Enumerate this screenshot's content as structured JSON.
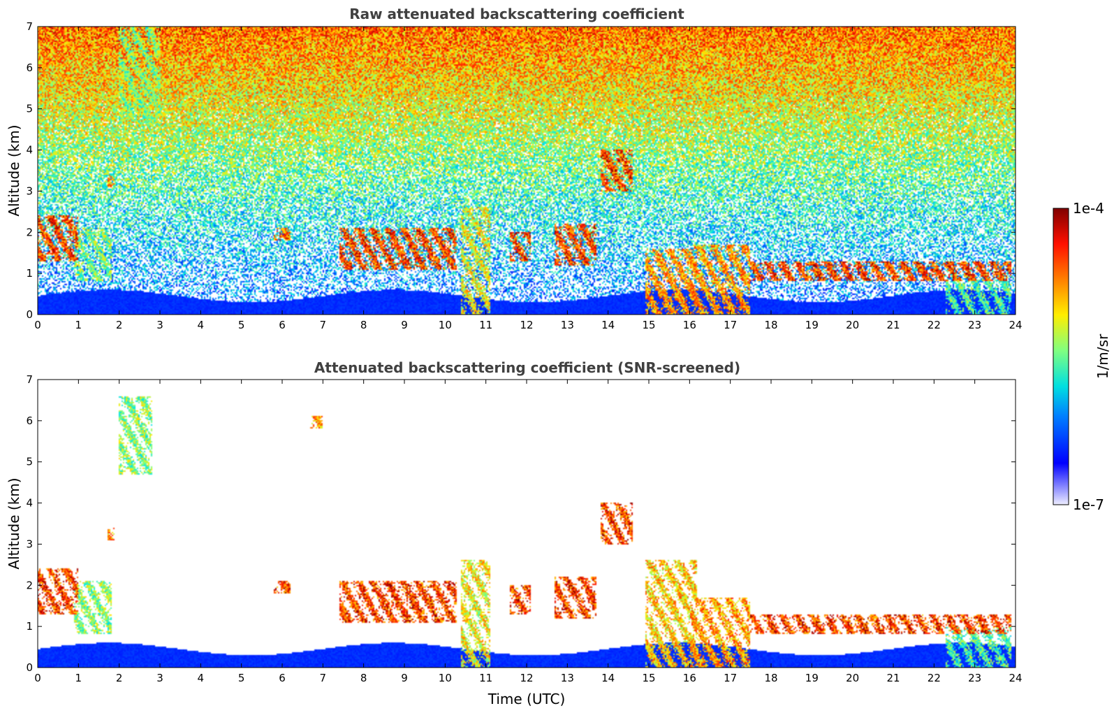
{
  "chart_data": [
    {
      "type": "heatmap",
      "title": "Raw attenuated backscattering coefficient",
      "xlabel": "",
      "ylabel": "Altitude (km)",
      "xlim": [
        0,
        24
      ],
      "ylim": [
        0,
        7
      ],
      "x_ticks": [
        "0",
        "1",
        "2",
        "3",
        "4",
        "5",
        "6",
        "7",
        "8",
        "9",
        "10",
        "11",
        "12",
        "13",
        "14",
        "15",
        "16",
        "17",
        "18",
        "19",
        "20",
        "21",
        "22",
        "23",
        "24"
      ],
      "y_ticks": [
        "0",
        "1",
        "2",
        "3",
        "4",
        "5",
        "6",
        "7"
      ],
      "colorscale": "jet",
      "noise": "high",
      "features": [
        {
          "t": [
            0.0,
            1.0
          ],
          "alt": [
            1.3,
            2.4
          ],
          "level": 1.0
        },
        {
          "t": [
            0.9,
            1.8
          ],
          "alt": [
            0.8,
            2.1
          ],
          "level": 0.7
        },
        {
          "t": [
            1.7,
            1.9
          ],
          "alt": [
            3.1,
            3.4
          ],
          "level": 0.9
        },
        {
          "t": [
            2.0,
            3.0
          ],
          "alt": [
            4.7,
            7.0
          ],
          "level": 0.7
        },
        {
          "t": [
            5.8,
            6.2
          ],
          "alt": [
            1.8,
            2.1
          ],
          "level": 0.95
        },
        {
          "t": [
            7.4,
            10.3
          ],
          "alt": [
            1.1,
            2.1
          ],
          "level": 1.0
        },
        {
          "t": [
            10.4,
            11.1
          ],
          "alt": [
            0.0,
            2.6
          ],
          "level": 0.8
        },
        {
          "t": [
            11.6,
            12.1
          ],
          "alt": [
            1.3,
            2.0
          ],
          "level": 1.0
        },
        {
          "t": [
            12.7,
            13.7
          ],
          "alt": [
            1.2,
            2.2
          ],
          "level": 1.0
        },
        {
          "t": [
            13.8,
            14.6
          ],
          "alt": [
            3.0,
            4.0
          ],
          "level": 1.0
        },
        {
          "t": [
            14.9,
            16.2
          ],
          "alt": [
            0.0,
            1.6
          ],
          "level": 0.9
        },
        {
          "t": [
            16.0,
            17.5
          ],
          "alt": [
            0.0,
            1.7
          ],
          "level": 0.9
        },
        {
          "t": [
            17.5,
            23.9
          ],
          "alt": [
            0.8,
            1.3
          ],
          "level": 1.0
        },
        {
          "t": [
            22.3,
            23.9
          ],
          "alt": [
            0.0,
            1.0
          ],
          "level": 0.65
        }
      ]
    },
    {
      "type": "heatmap",
      "title": "Attenuated backscattering coefficient (SNR-screened)",
      "xlabel": "Time (UTC)",
      "ylabel": "Altitude (km)",
      "xlim": [
        0,
        24
      ],
      "ylim": [
        0,
        7
      ],
      "x_ticks": [
        "0",
        "1",
        "2",
        "3",
        "4",
        "5",
        "6",
        "7",
        "8",
        "9",
        "10",
        "11",
        "12",
        "13",
        "14",
        "15",
        "16",
        "17",
        "18",
        "19",
        "20",
        "21",
        "22",
        "23",
        "24"
      ],
      "y_ticks": [
        "0",
        "1",
        "2",
        "3",
        "4",
        "5",
        "6",
        "7"
      ],
      "colorscale": "jet",
      "noise": "screened",
      "features": [
        {
          "t": [
            0.0,
            1.0
          ],
          "alt": [
            1.3,
            2.4
          ],
          "level": 1.0
        },
        {
          "t": [
            0.9,
            1.8
          ],
          "alt": [
            0.8,
            2.1
          ],
          "level": 0.7
        },
        {
          "t": [
            1.7,
            1.9
          ],
          "alt": [
            3.1,
            3.4
          ],
          "level": 0.9
        },
        {
          "t": [
            2.0,
            2.8
          ],
          "alt": [
            4.7,
            6.6
          ],
          "level": 0.7
        },
        {
          "t": [
            6.7,
            7.0
          ],
          "alt": [
            5.8,
            6.1
          ],
          "level": 0.9
        },
        {
          "t": [
            5.8,
            6.2
          ],
          "alt": [
            1.8,
            2.1
          ],
          "level": 1.0
        },
        {
          "t": [
            7.4,
            10.3
          ],
          "alt": [
            1.1,
            2.1
          ],
          "level": 1.0
        },
        {
          "t": [
            10.4,
            11.1
          ],
          "alt": [
            0.0,
            2.6
          ],
          "level": 0.8
        },
        {
          "t": [
            11.6,
            12.1
          ],
          "alt": [
            1.3,
            2.0
          ],
          "level": 1.0
        },
        {
          "t": [
            12.7,
            13.7
          ],
          "alt": [
            1.2,
            2.2
          ],
          "level": 1.0
        },
        {
          "t": [
            13.8,
            14.6
          ],
          "alt": [
            3.0,
            4.0
          ],
          "level": 1.0
        },
        {
          "t": [
            14.9,
            16.2
          ],
          "alt": [
            0.0,
            2.6
          ],
          "level": 0.85
        },
        {
          "t": [
            16.0,
            17.5
          ],
          "alt": [
            0.0,
            1.7
          ],
          "level": 0.9
        },
        {
          "t": [
            17.5,
            23.9
          ],
          "alt": [
            0.8,
            1.3
          ],
          "level": 1.0
        },
        {
          "t": [
            22.3,
            23.9
          ],
          "alt": [
            0.0,
            1.0
          ],
          "level": 0.65
        }
      ]
    }
  ],
  "colorbar": {
    "label": "1/m/sr",
    "max_label": "1e-4",
    "min_label": "1e-7",
    "colorscale": "jet"
  }
}
